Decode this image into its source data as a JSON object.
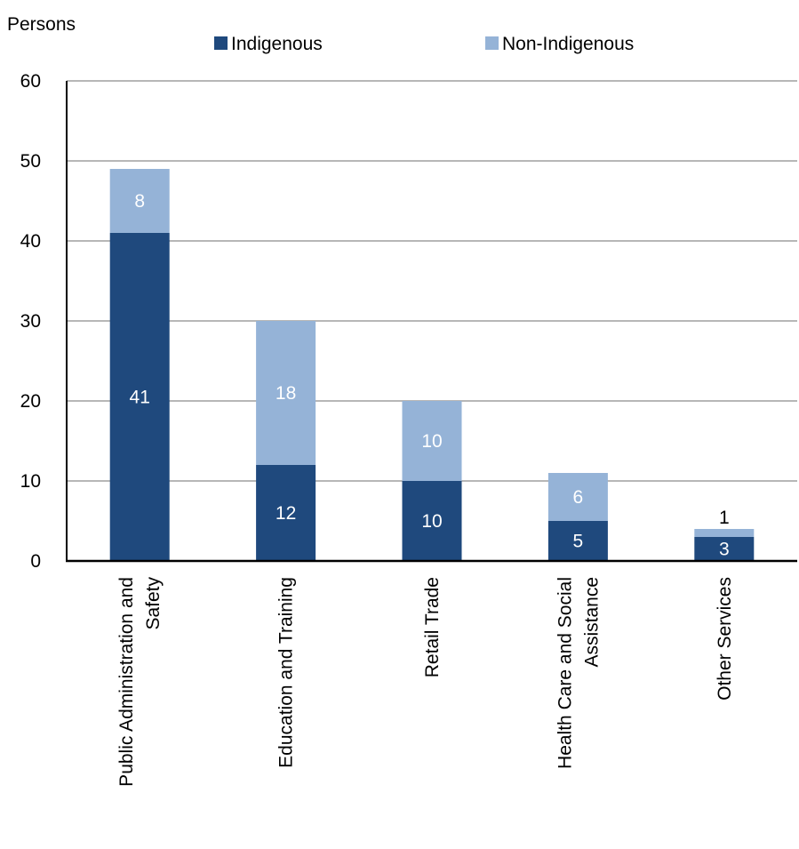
{
  "chart_data": {
    "type": "bar",
    "stacked": true,
    "ylabel": "Persons",
    "ylim": [
      0,
      60
    ],
    "yticks": [
      0,
      10,
      20,
      30,
      40,
      50,
      60
    ],
    "grid": true,
    "legend_position": "top",
    "categories": [
      [
        "Public Administration and",
        "Safety"
      ],
      [
        "Education and Training"
      ],
      [
        "Retail Trade"
      ],
      [
        "Health Care and Social",
        "Assistance"
      ],
      [
        "Other Services"
      ]
    ],
    "series": [
      {
        "name": "Indigenous",
        "color": "#1f497d",
        "label_color": "#ffffff",
        "values": [
          41,
          12,
          10,
          5,
          3
        ]
      },
      {
        "name": "Non-Indigenous",
        "color": "#95b3d7",
        "label_color": "#ffffff",
        "values": [
          8,
          18,
          10,
          6,
          1
        ]
      }
    ],
    "data_label_overrides": [
      {
        "series": 1,
        "index": 4,
        "label_color": "#000000",
        "position": "above"
      }
    ]
  }
}
